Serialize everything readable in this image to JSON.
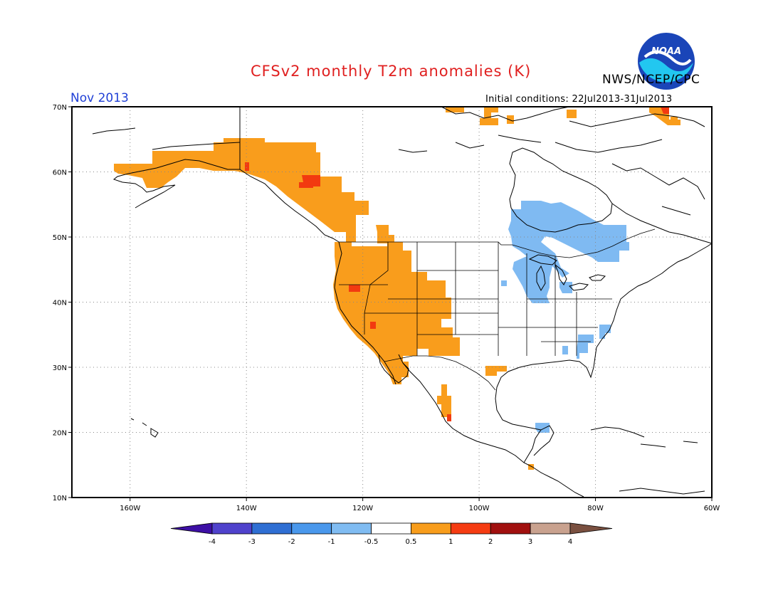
{
  "header": {
    "title": "CFSv2 monthly T2m anomalies (K)",
    "agency": "NWS/NCEP/CPC",
    "month": "Nov 2013",
    "initial_conditions": "Initial conditions: 22Jul2013-31Jul2013",
    "logo_text": "NOAA"
  },
  "map": {
    "lon_range": [
      -170,
      -60
    ],
    "lat_range": [
      10,
      70
    ],
    "lon_labels": [
      "160W",
      "140W",
      "120W",
      "100W",
      "80W",
      "60W"
    ],
    "lat_labels": [
      "10N",
      "20N",
      "30N",
      "40N",
      "50N",
      "60N",
      "70N"
    ],
    "grid": "dotted"
  },
  "colors": {
    "warm_0_5_1": "#f99d1c",
    "warm_1_2": "#f23a10",
    "cool_-1_-0_5": "#7fbaf2",
    "title": "#e02020",
    "month": "#1f3fd6"
  },
  "legend": {
    "labels": [
      "-4",
      "-3",
      "-2",
      "-1",
      "-0.5",
      "0.5",
      "1",
      "2",
      "3",
      "4"
    ],
    "colors": [
      "#3d0fa5",
      "#4f42cc",
      "#2f6fd3",
      "#4a98ec",
      "#80bcf2",
      "#ffffff",
      "#f89d1c",
      "#f53c12",
      "#a1100f",
      "#c9a28f",
      "#7a5040"
    ]
  }
}
